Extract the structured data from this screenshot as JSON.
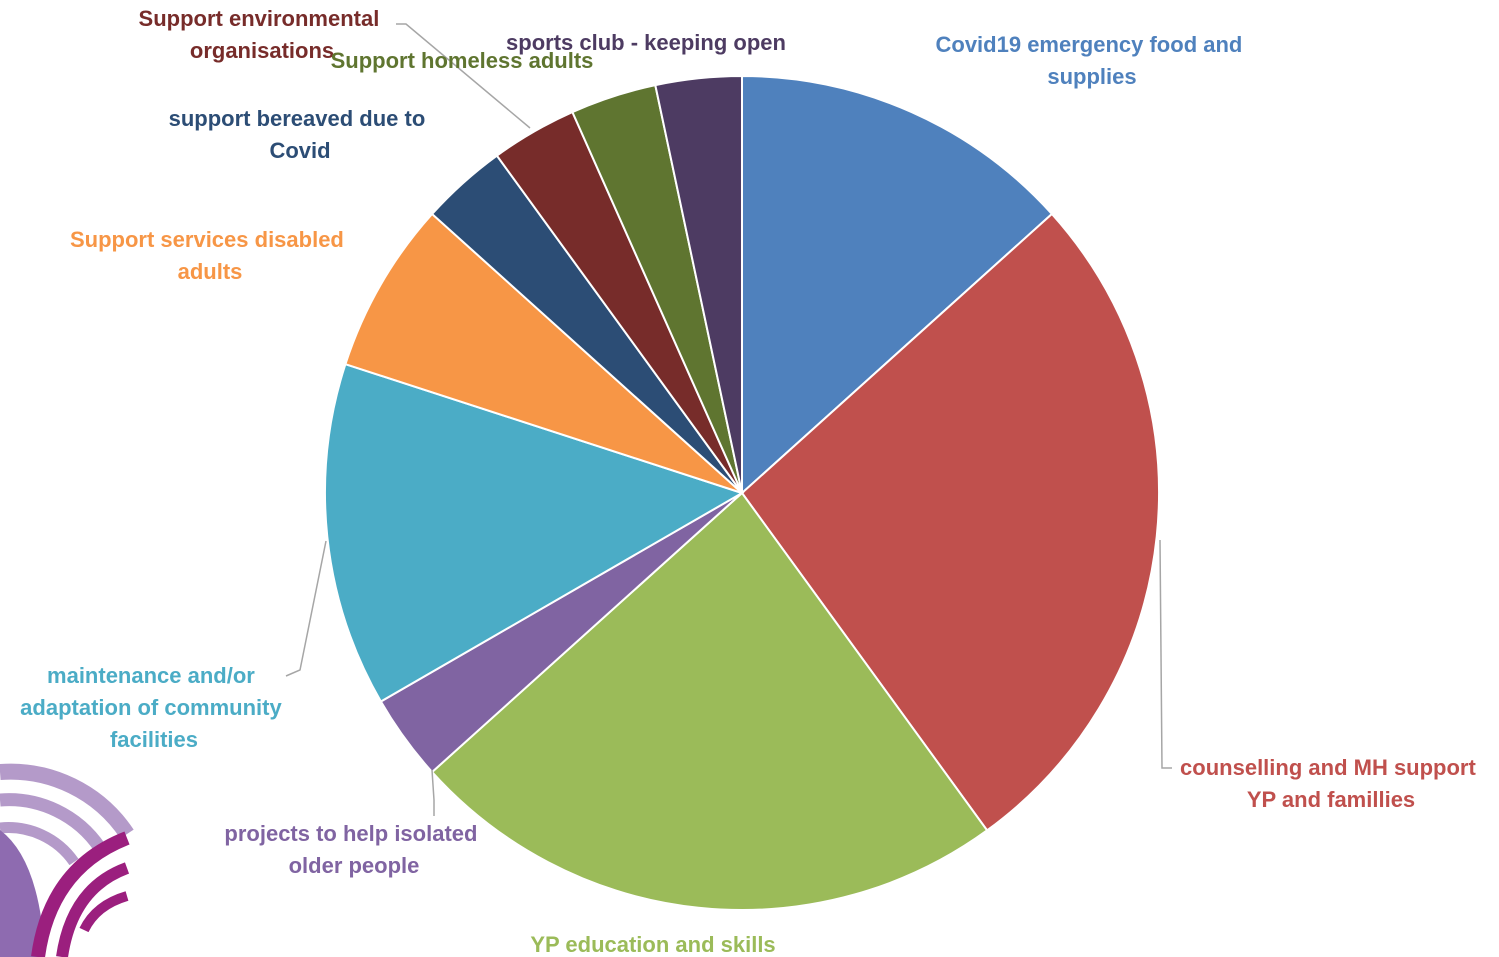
{
  "chart_data": {
    "type": "pie",
    "title": "",
    "start_angle_deg": 0,
    "direction": "clockwise",
    "slices": [
      {
        "label": "Covid19 emergency food and supplies",
        "value": 4,
        "color": "#4F81BD"
      },
      {
        "label": "counselling and MH support YP and famillies",
        "value": 8,
        "color": "#C0504D"
      },
      {
        "label": "YP education and skills",
        "value": 7,
        "color": "#9BBB59"
      },
      {
        "label": "projects to help isolated older people",
        "value": 1,
        "color": "#8064A2"
      },
      {
        "label": "maintenance and/or adaptation of community facilities",
        "value": 4,
        "color": "#4BACC6"
      },
      {
        "label": "Support services disabled adults",
        "value": 2,
        "color": "#F79646"
      },
      {
        "label": "support bereaved due to Covid",
        "value": 1,
        "color": "#2C4D75"
      },
      {
        "label": "Support environmental organisations",
        "value": 1,
        "color": "#772C2A"
      },
      {
        "label": "Support homeless adults",
        "value": 1,
        "color": "#5F7530"
      },
      {
        "label": "sports club - keeping open",
        "value": 1,
        "color": "#4D3B62"
      }
    ]
  },
  "logo": {
    "colors": [
      "#B49AC9",
      "#8E6BB0",
      "#9B1F7E"
    ]
  }
}
